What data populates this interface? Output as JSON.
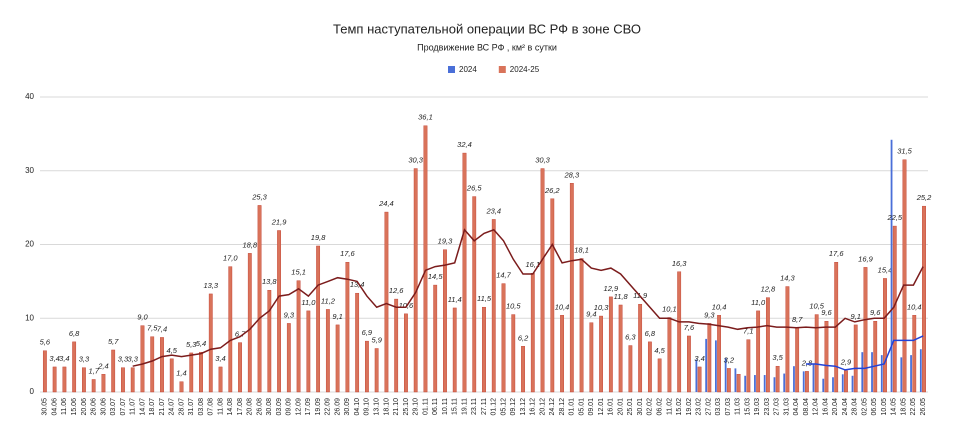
{
  "chart_data": {
    "type": "bar",
    "title": "Темп наступательной операции ВС РФ в зоне СВО",
    "subtitle": "Продвижение ВС РФ , км² в сутки",
    "categories": [
      "30.05",
      "04.06",
      "11.06",
      "15.06",
      "20.06",
      "26.06",
      "30.06",
      "03.07",
      "07.07",
      "11.07",
      "14.07",
      "18.07",
      "21.07",
      "24.07",
      "28.07",
      "31.07",
      "03.08",
      "07.08",
      "11.08",
      "14.08",
      "17.08",
      "20.08",
      "26.08",
      "30.08",
      "03.09",
      "09.09",
      "12.09",
      "17.09",
      "19.09",
      "22.09",
      "26.09",
      "30.09",
      "04.10",
      "09.10",
      "13.10",
      "18.10",
      "21.10",
      "25.10",
      "29.10",
      "01.11",
      "06.11",
      "10.11",
      "15.11",
      "19.11",
      "23.11",
      "27.11",
      "01.12",
      "05.12",
      "09.12",
      "13.12",
      "16.12",
      "20.12",
      "24.12",
      "28.12",
      "01.01",
      "05.01",
      "09.01",
      "12.01",
      "16.01",
      "20.01",
      "25.01",
      "30.01",
      "02.02",
      "06.02",
      "11.02",
      "15.02",
      "19.02",
      "23.02",
      "27.02",
      "03.03",
      "07.03",
      "11.03",
      "15.03",
      "19.03",
      "23.03",
      "27.03",
      "31.03",
      "04.04",
      "08.04",
      "12.04",
      "16.04",
      "20.04",
      "24.04",
      "28.04",
      "02.05",
      "06.05",
      "10.05",
      "14.05",
      "18.05",
      "22.05",
      "26.05"
    ],
    "series": [
      {
        "name": "2024",
        "color": "#4a6fd8",
        "values": [
          null,
          null,
          null,
          null,
          null,
          null,
          null,
          null,
          null,
          null,
          null,
          null,
          null,
          null,
          null,
          null,
          null,
          null,
          null,
          null,
          null,
          null,
          null,
          null,
          null,
          null,
          null,
          null,
          null,
          null,
          null,
          null,
          null,
          null,
          null,
          null,
          null,
          null,
          null,
          null,
          null,
          null,
          null,
          null,
          null,
          null,
          null,
          null,
          null,
          null,
          null,
          null,
          null,
          null,
          null,
          null,
          null,
          null,
          null,
          null,
          null,
          null,
          null,
          null,
          null,
          null,
          null,
          4.4,
          7.2,
          7.0,
          4.6,
          3.2,
          2.2,
          2.3,
          2.3,
          2.0,
          2.5,
          3.5,
          2.8,
          3.8,
          1.8,
          2.0,
          2.4,
          2.2,
          5.4,
          5.4,
          5.0,
          34.2,
          4.7,
          5.0,
          5.8
        ]
      },
      {
        "name": "2024-25",
        "color": "#d9735a",
        "values": [
          5.6,
          3.4,
          3.4,
          6.8,
          3.3,
          1.7,
          2.4,
          5.7,
          3.3,
          3.3,
          9.0,
          7.5,
          7.4,
          4.5,
          1.4,
          5.3,
          5.4,
          13.3,
          3.4,
          17.0,
          6.7,
          18.8,
          25.3,
          13.8,
          21.9,
          9.3,
          15.1,
          11.0,
          19.8,
          11.2,
          9.1,
          17.6,
          13.4,
          6.9,
          5.9,
          24.4,
          12.6,
          10.6,
          30.3,
          36.1,
          14.5,
          19.3,
          11.4,
          32.4,
          26.5,
          11.5,
          23.4,
          14.7,
          10.5,
          6.2,
          16.1,
          30.3,
          26.2,
          10.4,
          28.3,
          18.1,
          9.4,
          10.3,
          12.9,
          11.8,
          6.3,
          11.9,
          6.8,
          4.5,
          10.1,
          16.3,
          7.6,
          3.4,
          9.3,
          10.4,
          3.2,
          2.4,
          7.1,
          11.0,
          12.8,
          3.5,
          14.3,
          8.7,
          2.8,
          10.5,
          9.6,
          17.6,
          2.9,
          9.1,
          16.9,
          9.6,
          15.4,
          22.5,
          31.5,
          10.4,
          25.2
        ],
        "value_labels": [
          "5,6",
          "3,4",
          "3,4",
          "6,8",
          "3,3",
          "1,7",
          "2,4",
          "5,7",
          "3,3",
          "3,3",
          "9,0",
          "7,5",
          "7,4",
          "4,5",
          "1,4",
          "5,3",
          "5,4",
          "13,3",
          "3,4",
          "17,0",
          "6,7",
          "18,8",
          "25,3",
          "13,8",
          "21,9",
          "9,3",
          "15,1",
          "11,0",
          "19,8",
          "11,2",
          "9,1",
          "17,6",
          "13,4",
          "6,9",
          "5,9",
          "24,4",
          "12,6",
          "10,6",
          "30,3",
          "36,1",
          "14,5",
          "19,3",
          "11,4",
          "32,4",
          "26,5",
          "11,5",
          "23,4",
          "14,7",
          "10,5",
          "6,2",
          "16,1",
          "30,3",
          "26,2",
          "10,4",
          "28,3",
          "18,1",
          "9,4",
          "10,3",
          "12,9",
          "11,8",
          "6,3",
          "11,9",
          "6,8",
          "4,5",
          "10,1",
          "16,3",
          "7,6",
          "3,4",
          "9,3",
          "10,4",
          "3,2",
          null,
          "7,1",
          "11,0",
          "12,8",
          "3,5",
          "14,3",
          "8,7",
          "2,8",
          "10,5",
          "9,6",
          "17,6",
          "2,9",
          "9,1",
          "16,9",
          "9,6",
          "15,4",
          "22,5",
          "31,5",
          "10,4",
          "25,2"
        ]
      }
    ],
    "lines": [
      {
        "color": "#7b1c1c",
        "values": [
          null,
          null,
          null,
          null,
          null,
          null,
          null,
          null,
          null,
          3.5,
          3.8,
          4.2,
          4.8,
          5.0,
          4.8,
          5.0,
          5.2,
          5.8,
          6.0,
          7.0,
          7.5,
          8.5,
          10.0,
          11.0,
          13.0,
          13.2,
          14.0,
          13.0,
          14.5,
          15.0,
          15.5,
          15.3,
          15.0,
          13.0,
          11.5,
          12.0,
          11.5,
          11.5,
          13.5,
          16.5,
          17.0,
          17.2,
          17.5,
          22.0,
          20.5,
          21.5,
          22.0,
          20.5,
          18.0,
          16.0,
          16.0,
          18.0,
          20.0,
          17.5,
          17.8,
          18.0,
          16.8,
          16.5,
          16.8,
          16.0,
          14.5,
          13.0,
          11.5,
          10.0,
          10.0,
          9.5,
          9.5,
          9.3,
          9.2,
          9.0,
          8.8,
          8.5,
          8.7,
          8.8,
          9.0,
          8.8,
          8.8,
          8.7,
          8.8,
          8.7,
          8.8,
          8.8,
          10.0,
          9.5,
          9.8,
          10.0,
          10.0,
          11.5,
          14.5,
          14.5,
          17.0
        ]
      },
      {
        "color": "#2142d8",
        "values": [
          null,
          null,
          null,
          null,
          null,
          null,
          null,
          null,
          null,
          null,
          null,
          null,
          null,
          null,
          null,
          null,
          null,
          null,
          null,
          null,
          null,
          null,
          null,
          null,
          null,
          null,
          null,
          null,
          null,
          null,
          null,
          null,
          null,
          null,
          null,
          null,
          null,
          null,
          null,
          null,
          null,
          null,
          null,
          null,
          null,
          null,
          null,
          null,
          null,
          null,
          null,
          null,
          null,
          null,
          null,
          null,
          null,
          null,
          null,
          null,
          null,
          null,
          null,
          null,
          null,
          null,
          null,
          null,
          null,
          null,
          null,
          null,
          null,
          null,
          null,
          null,
          null,
          null,
          3.8,
          3.8,
          3.6,
          3.5,
          3.0,
          3.2,
          3.2,
          3.5,
          3.8,
          7.0,
          7.0,
          7.0,
          7.6
        ]
      }
    ],
    "ylim": [
      0,
      40
    ],
    "yticks": [
      0,
      10,
      20,
      30,
      40
    ],
    "grid": true
  }
}
